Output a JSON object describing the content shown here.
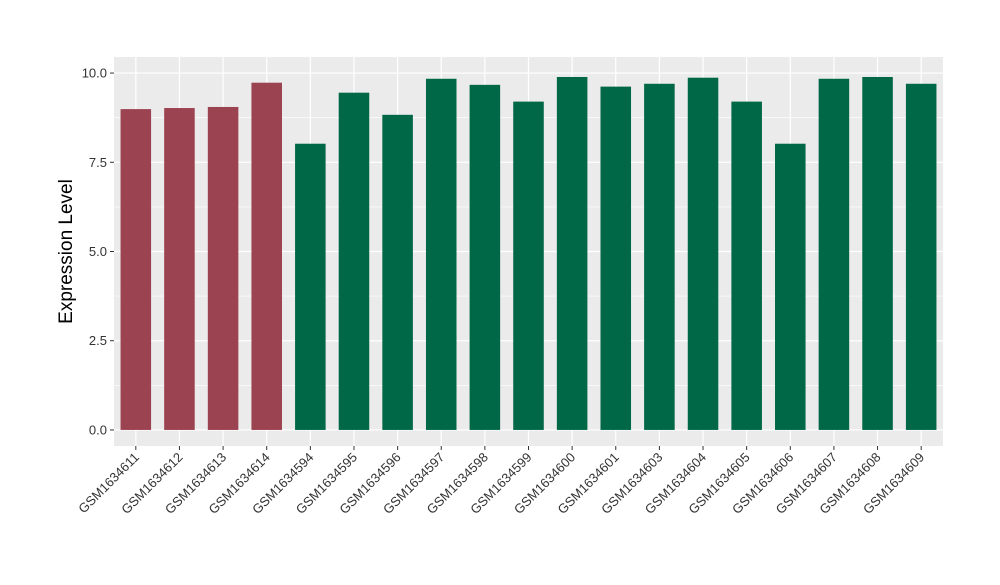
{
  "chart_data": {
    "type": "bar",
    "ylabel": "Expression Level",
    "xlabel": "",
    "ylim": [
      -0.45,
      10.45
    ],
    "yticks": [
      0.0,
      2.5,
      5.0,
      7.5,
      10.0
    ],
    "ytick_labels": [
      "0.0",
      "2.5",
      "5.0",
      "7.5",
      "10.0"
    ],
    "grid": true,
    "legend": "none",
    "categories": [
      "GSM1634611",
      "GSM1634612",
      "GSM1634613",
      "GSM1634614",
      "GSM1634594",
      "GSM1634595",
      "GSM1634596",
      "GSM1634597",
      "GSM1634598",
      "GSM1634599",
      "GSM1634600",
      "GSM1634601",
      "GSM1634603",
      "GSM1634604",
      "GSM1634605",
      "GSM1634606",
      "GSM1634607",
      "GSM1634608",
      "GSM1634609"
    ],
    "values": [
      8.99,
      9.02,
      9.05,
      9.73,
      8.02,
      9.45,
      8.83,
      9.84,
      9.67,
      9.2,
      9.89,
      9.62,
      9.7,
      9.87,
      9.2,
      8.02,
      9.84,
      9.89,
      9.7
    ],
    "bar_colors": [
      "#9b4350",
      "#9b4350",
      "#9b4350",
      "#9b4350",
      "#006747",
      "#006747",
      "#006747",
      "#006747",
      "#006747",
      "#006747",
      "#006747",
      "#006747",
      "#006747",
      "#006747",
      "#006747",
      "#006747",
      "#006747",
      "#006747",
      "#006747"
    ],
    "panel_background": "#ebebeb",
    "grid_color": "#ffffff"
  }
}
